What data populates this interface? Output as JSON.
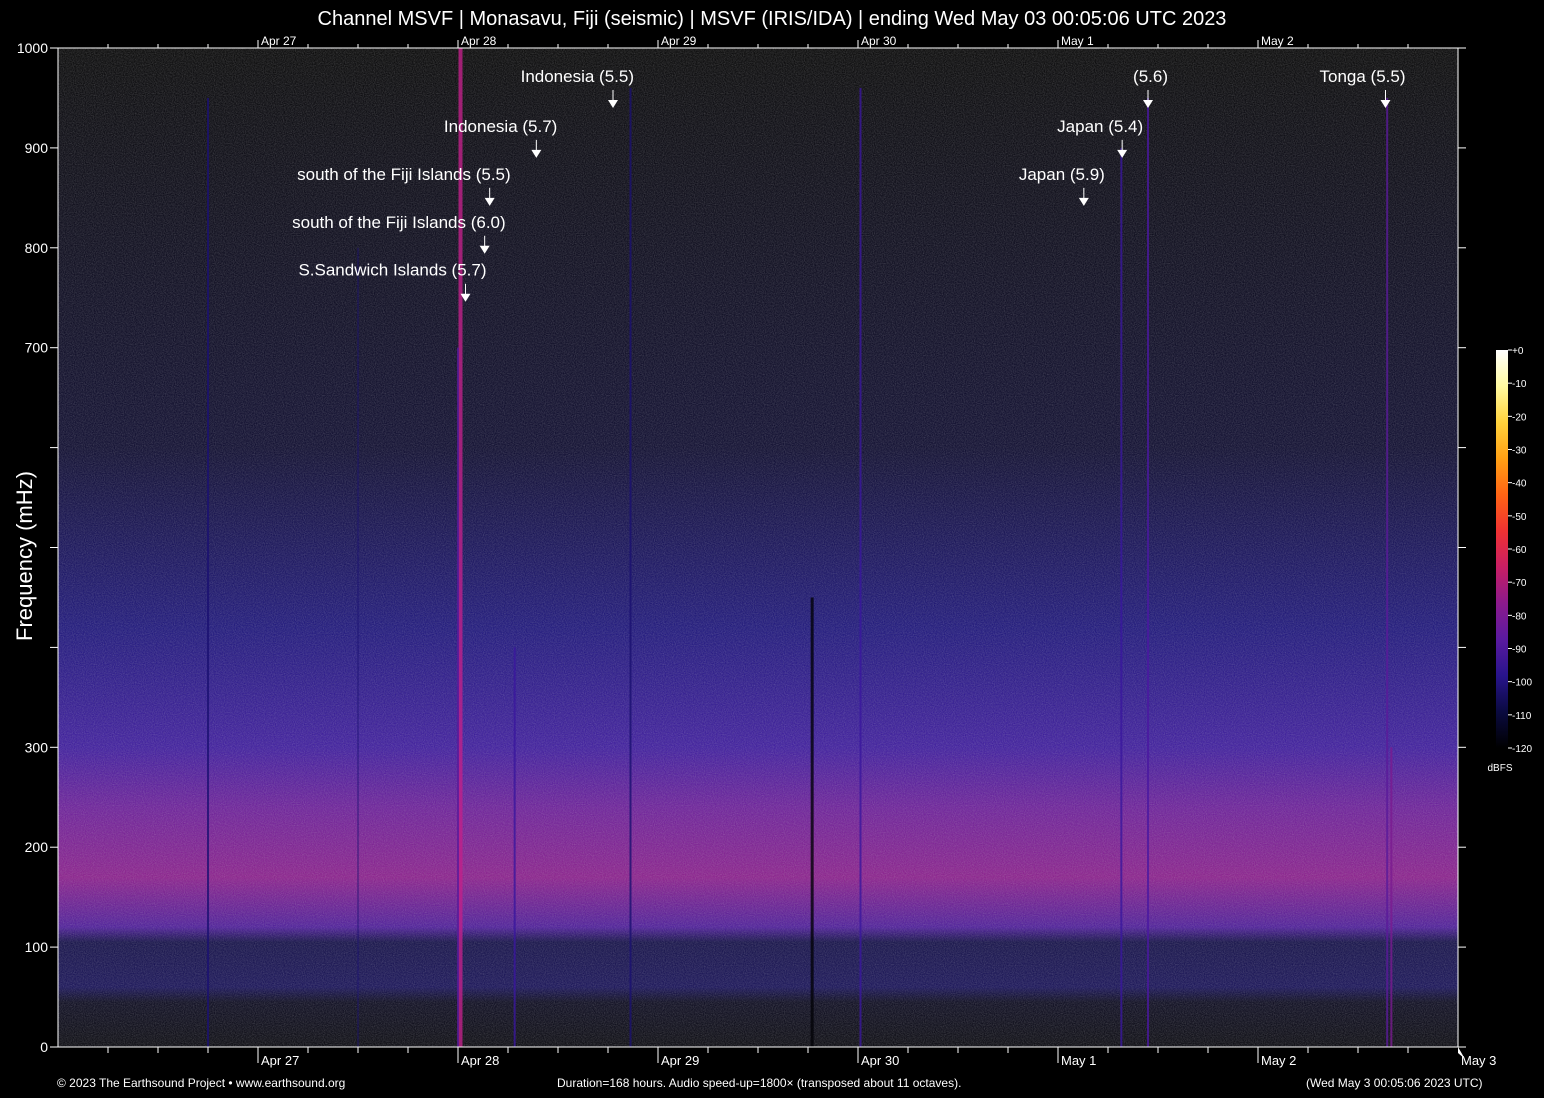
{
  "chart_data": {
    "type": "heatmap",
    "title": "Channel MSVF | Monasavu, Fiji (seismic) | MSVF (IRIS/IDA) | ending Wed May 03 00:05:06 UTC 2023",
    "xlabel": "",
    "ylabel": "Frequency (mHz)",
    "ylim": [
      0,
      1000
    ],
    "xlim_hours": [
      0,
      168
    ],
    "yticks": [
      {
        "v": 0,
        "label": "0"
      },
      {
        "v": 100,
        "label": "100"
      },
      {
        "v": 200,
        "label": "200"
      },
      {
        "v": 300,
        "label": "300"
      },
      {
        "v": 400,
        "label": ""
      },
      {
        "v": 500,
        "label": ""
      },
      {
        "v": 600,
        "label": ""
      },
      {
        "v": 700,
        "label": "700"
      },
      {
        "v": 800,
        "label": "800"
      },
      {
        "v": 900,
        "label": "900"
      },
      {
        "v": 1000,
        "label": "1000"
      }
    ],
    "day_labels_bottom": [
      {
        "h": 24,
        "label": "Apr 27"
      },
      {
        "h": 48,
        "label": "Apr 28"
      },
      {
        "h": 72,
        "label": "Apr 29"
      },
      {
        "h": 96,
        "label": "Apr 30"
      },
      {
        "h": 120,
        "label": "May  1"
      },
      {
        "h": 144,
        "label": "May  2"
      },
      {
        "h": 168,
        "label": "May  3"
      }
    ],
    "day_labels_top": [
      {
        "h": 24,
        "label": "Apr 27"
      },
      {
        "h": 48,
        "label": "Apr 28"
      },
      {
        "h": 72,
        "label": "Apr 29"
      },
      {
        "h": 96,
        "label": "Apr 30"
      },
      {
        "h": 120,
        "label": "May  1"
      },
      {
        "h": 144,
        "label": "May  2"
      }
    ],
    "events": [
      {
        "h": 66.6,
        "f": 940,
        "label": "Indonesia (5.5)"
      },
      {
        "h": 57.4,
        "f": 890,
        "label": "Indonesia (5.7)"
      },
      {
        "h": 51.8,
        "f": 842,
        "label": "south of the Fiji Islands (5.5)"
      },
      {
        "h": 51.2,
        "f": 794,
        "label": "south of the Fiji Islands (6.0)"
      },
      {
        "h": 48.9,
        "f": 746,
        "label": "S.Sandwich Islands (5.7)"
      },
      {
        "h": 130.8,
        "f": 940,
        "label": "(5.6)"
      },
      {
        "h": 127.7,
        "f": 890,
        "label": "Japan (5.4)"
      },
      {
        "h": 123.1,
        "f": 842,
        "label": "Japan (5.9)"
      },
      {
        "h": 159.3,
        "f": 940,
        "label": "Tonga (5.5)"
      }
    ],
    "colorbar": {
      "unit": "dBFS",
      "range": [
        -120,
        0
      ],
      "ticks": [
        "+0",
        "-10",
        "-20",
        "-30",
        "-40",
        "-50",
        "-60",
        "-70",
        "-80",
        "-90",
        "-100",
        "-110",
        "-120"
      ],
      "colors": [
        "#000000",
        "#0a0a40",
        "#28148c",
        "#5a1aa0",
        "#8c1a8c",
        "#c81e64",
        "#f03232",
        "#ff6414",
        "#ffa014",
        "#ffd23c",
        "#fffaa0",
        "#ffffff"
      ]
    }
  },
  "footer": {
    "left": "© 2023 The Earthsound Project • www.earthsound.org",
    "middle": "Duration=168 hours. Audio speed-up=1800× (transposed about 11 octaves).",
    "right": "(Wed May  3 00:05:06 2023 UTC)"
  }
}
